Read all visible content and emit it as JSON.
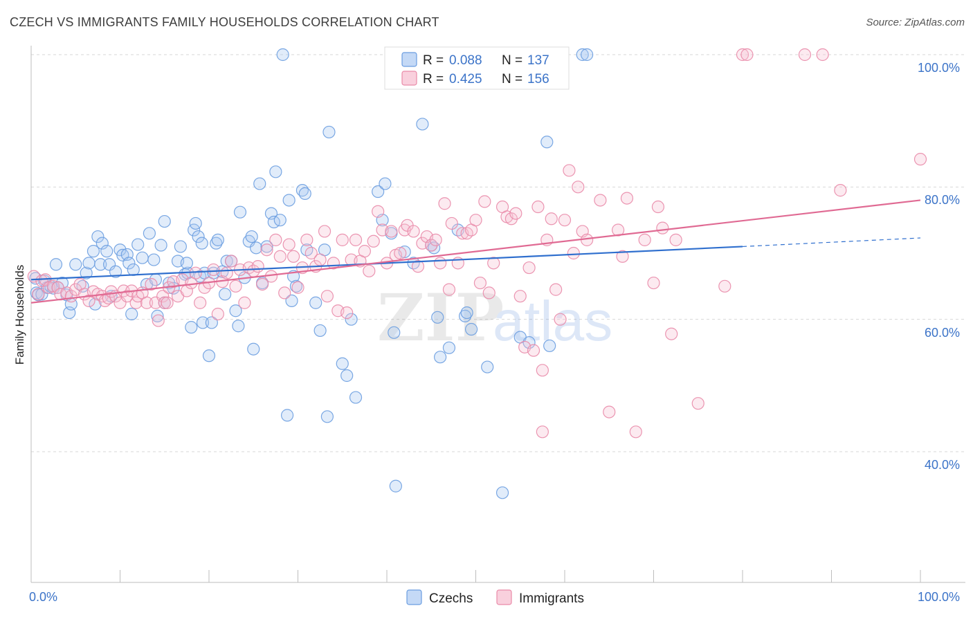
{
  "title": "CZECH VS IMMIGRANTS FAMILY HOUSEHOLDS CORRELATION CHART",
  "source": "Source: ZipAtlas.com",
  "watermark": {
    "zip": "ZIP",
    "atlas": "atlas"
  },
  "legend": {
    "r_label": "R =",
    "n_label": "N =",
    "series": [
      {
        "name": "Czechs",
        "r": "0.088",
        "n": "137",
        "color": "#8fb8ee",
        "stroke": "#6a9de0"
      },
      {
        "name": "Immigrants",
        "r": "0.425",
        "n": "156",
        "color": "#f4b6c9",
        "stroke": "#e98aa8"
      }
    ]
  },
  "chart_data": {
    "type": "scatter",
    "title": "CZECH VS IMMIGRANTS FAMILY HOUSEHOLDS CORRELATION CHART",
    "xlabel": "",
    "ylabel": "Family Households",
    "xlim": [
      0,
      100
    ],
    "ylim": [
      22,
      102
    ],
    "x_tick_labels": [
      "0.0%",
      "100.0%"
    ],
    "y_ticks": [
      40,
      60,
      80,
      100
    ],
    "y_tick_labels": [
      "40.0%",
      "60.0%",
      "80.0%",
      "100.0%"
    ],
    "grid": true,
    "series": [
      {
        "name": "Czechs",
        "color": "#8fb8ee",
        "trend": {
          "x0": 0,
          "y0": 66.0,
          "x1": 80,
          "y1": 71.0,
          "x_dash_end": 100,
          "y_dash_end": 72.3,
          "color": "#2f6fce"
        },
        "points": [
          [
            0.5,
            66.2
          ],
          [
            0.6,
            64
          ],
          [
            0.8,
            63.7
          ],
          [
            1.2,
            63.8
          ],
          [
            1.5,
            65.8
          ],
          [
            1.8,
            64.8
          ],
          [
            2.2,
            65
          ],
          [
            2.5,
            64.7
          ],
          [
            2.8,
            68.3
          ],
          [
            3,
            64.8
          ],
          [
            3.5,
            65.5
          ],
          [
            4,
            63.7
          ],
          [
            4.3,
            61
          ],
          [
            4.5,
            62.3
          ],
          [
            5,
            68.3
          ],
          [
            5.8,
            65
          ],
          [
            6.2,
            67
          ],
          [
            6.5,
            68.5
          ],
          [
            7,
            70.3
          ],
          [
            7.2,
            62.3
          ],
          [
            7.5,
            72.5
          ],
          [
            7.8,
            68.3
          ],
          [
            8,
            71.5
          ],
          [
            8.5,
            70.3
          ],
          [
            8.8,
            68.3
          ],
          [
            9,
            63.5
          ],
          [
            9.5,
            67.2
          ],
          [
            10,
            70.5
          ],
          [
            10.3,
            69.7
          ],
          [
            10.8,
            69.8
          ],
          [
            11,
            68.5
          ],
          [
            11.3,
            60.8
          ],
          [
            11.5,
            67.5
          ],
          [
            12,
            71.3
          ],
          [
            12.5,
            69.3
          ],
          [
            13,
            65.3
          ],
          [
            13.3,
            73
          ],
          [
            13.8,
            69
          ],
          [
            14,
            66
          ],
          [
            14.2,
            60.5
          ],
          [
            14.6,
            71.2
          ],
          [
            15,
            62.5
          ],
          [
            15,
            74.8
          ],
          [
            15.5,
            65.5
          ],
          [
            16,
            64.7
          ],
          [
            16.5,
            68.8
          ],
          [
            16.8,
            71
          ],
          [
            17.3,
            66.8
          ],
          [
            17.6,
            67
          ],
          [
            17.5,
            68.5
          ],
          [
            18,
            58.8
          ],
          [
            18.3,
            73.5
          ],
          [
            18.5,
            74.5
          ],
          [
            18.8,
            72.5
          ],
          [
            19,
            66.5
          ],
          [
            19.3,
            59.5
          ],
          [
            19.2,
            71.5
          ],
          [
            19.5,
            67
          ],
          [
            20,
            54.5
          ],
          [
            20.5,
            67
          ],
          [
            20.3,
            59.5
          ],
          [
            20.8,
            71.5
          ],
          [
            21,
            72
          ],
          [
            21.5,
            67.2
          ],
          [
            21.8,
            63.8
          ],
          [
            22,
            68.8
          ],
          [
            22.5,
            68.8
          ],
          [
            23,
            61.3
          ],
          [
            23.3,
            59
          ],
          [
            23.5,
            76.2
          ],
          [
            24,
            66.3
          ],
          [
            24.5,
            71.8
          ],
          [
            24.8,
            72.5
          ],
          [
            25,
            55.5
          ],
          [
            25.3,
            70.8
          ],
          [
            25.7,
            80.5
          ],
          [
            26,
            65.5
          ],
          [
            26.5,
            71
          ],
          [
            27,
            76
          ],
          [
            27.5,
            82.3
          ],
          [
            27.3,
            74.7
          ],
          [
            28,
            75
          ],
          [
            28.3,
            100
          ],
          [
            28.8,
            45.5
          ],
          [
            29,
            78
          ],
          [
            29.3,
            62.8
          ],
          [
            29.5,
            66.5
          ],
          [
            29.8,
            65
          ],
          [
            30.5,
            79.5
          ],
          [
            30.8,
            79
          ],
          [
            31,
            70.5
          ],
          [
            32,
            62.5
          ],
          [
            32.5,
            58.3
          ],
          [
            33,
            70.5
          ],
          [
            33.3,
            45.3
          ],
          [
            33.5,
            88.3
          ],
          [
            35,
            53.3
          ],
          [
            35.5,
            51.5
          ],
          [
            36,
            60
          ],
          [
            36.5,
            48.2
          ],
          [
            39,
            79.3
          ],
          [
            39.5,
            75
          ],
          [
            39.8,
            80.5
          ],
          [
            40.5,
            73
          ],
          [
            41,
            34.8
          ],
          [
            40.8,
            58
          ],
          [
            42,
            70.2
          ],
          [
            43,
            68.5
          ],
          [
            44,
            89.5
          ],
          [
            45,
            71.2
          ],
          [
            45.3,
            70.8
          ],
          [
            45.7,
            60.3
          ],
          [
            46,
            54.3
          ],
          [
            47,
            55.7
          ],
          [
            48,
            73.5
          ],
          [
            48.8,
            60.5
          ],
          [
            49,
            61
          ],
          [
            49.5,
            58.5
          ],
          [
            51.3,
            52.8
          ],
          [
            53,
            33.8
          ],
          [
            55,
            57.3
          ],
          [
            56,
            56.5
          ],
          [
            58,
            86.8
          ],
          [
            58.3,
            56
          ],
          [
            62,
            100
          ],
          [
            62.5,
            100
          ]
        ]
      },
      {
        "name": "Immigrants",
        "color": "#f4b6c9",
        "trend": {
          "x0": 0,
          "y0": 62.5,
          "x1": 100,
          "y1": 78.0,
          "color": "#e06a93"
        },
        "points": [
          [
            0.3,
            66.5
          ],
          [
            0.8,
            63.8
          ],
          [
            1.2,
            65.8
          ],
          [
            1.6,
            66
          ],
          [
            2,
            64.8
          ],
          [
            2.5,
            65
          ],
          [
            3,
            64.8
          ],
          [
            3.3,
            63.8
          ],
          [
            4,
            64
          ],
          [
            4.5,
            63.5
          ],
          [
            5,
            64.5
          ],
          [
            5.5,
            65.3
          ],
          [
            6,
            63.8
          ],
          [
            6.5,
            62.8
          ],
          [
            7,
            64.2
          ],
          [
            7.5,
            63.8
          ],
          [
            8,
            63.5
          ],
          [
            8.3,
            62.8
          ],
          [
            8.7,
            63.2
          ],
          [
            9,
            64.2
          ],
          [
            9.5,
            63.5
          ],
          [
            10,
            62.5
          ],
          [
            10.4,
            64.3
          ],
          [
            10.8,
            63.5
          ],
          [
            11.3,
            64.3
          ],
          [
            11.8,
            62.5
          ],
          [
            12,
            63.5
          ],
          [
            12.5,
            64
          ],
          [
            13,
            62.5
          ],
          [
            13.5,
            65.3
          ],
          [
            14,
            62.5
          ],
          [
            14.3,
            59.8
          ],
          [
            14.8,
            63.5
          ],
          [
            15,
            62.5
          ],
          [
            15.3,
            62.5
          ],
          [
            15.5,
            64.8
          ],
          [
            16,
            65.7
          ],
          [
            16.5,
            63.5
          ],
          [
            17,
            66
          ],
          [
            17.5,
            64.3
          ],
          [
            18,
            65.5
          ],
          [
            18.5,
            67
          ],
          [
            19,
            62.5
          ],
          [
            19.5,
            64.8
          ],
          [
            20,
            65.5
          ],
          [
            20.5,
            67.5
          ],
          [
            21,
            60.8
          ],
          [
            21.5,
            65.7
          ],
          [
            22,
            67
          ],
          [
            22.5,
            68.8
          ],
          [
            23,
            65
          ],
          [
            23.5,
            67.5
          ],
          [
            24,
            62.5
          ],
          [
            24.5,
            67.8
          ],
          [
            25,
            67.3
          ],
          [
            25.5,
            68
          ],
          [
            26,
            65.3
          ],
          [
            26.5,
            70.5
          ],
          [
            27,
            66.5
          ],
          [
            27.5,
            72
          ],
          [
            28,
            69.5
          ],
          [
            28.5,
            64
          ],
          [
            29,
            71.3
          ],
          [
            29.5,
            69.5
          ],
          [
            30,
            64.8
          ],
          [
            30.5,
            67.8
          ],
          [
            31,
            72
          ],
          [
            31.5,
            70
          ],
          [
            32,
            68
          ],
          [
            32.5,
            69
          ],
          [
            33,
            73.3
          ],
          [
            33.3,
            63.5
          ],
          [
            34,
            68.5
          ],
          [
            34.5,
            61.3
          ],
          [
            35,
            72
          ],
          [
            35.5,
            61
          ],
          [
            36,
            69
          ],
          [
            36.5,
            72
          ],
          [
            37,
            68.8
          ],
          [
            37.5,
            70.3
          ],
          [
            38,
            67.3
          ],
          [
            38.5,
            71.8
          ],
          [
            39,
            76.3
          ],
          [
            39.5,
            73.5
          ],
          [
            40,
            68.5
          ],
          [
            40.5,
            73.3
          ],
          [
            41,
            69.7
          ],
          [
            41.5,
            70
          ],
          [
            42,
            73.5
          ],
          [
            42.3,
            74.2
          ],
          [
            43,
            73.3
          ],
          [
            43.5,
            68
          ],
          [
            44,
            71.5
          ],
          [
            44.5,
            72.5
          ],
          [
            45,
            71.2
          ],
          [
            45.5,
            72
          ],
          [
            46,
            68.5
          ],
          [
            46.5,
            77.5
          ],
          [
            47,
            64.5
          ],
          [
            47.3,
            74.5
          ],
          [
            48,
            68.5
          ],
          [
            48.5,
            73
          ],
          [
            49,
            73
          ],
          [
            49.5,
            73.5
          ],
          [
            50,
            75
          ],
          [
            50.5,
            65.5
          ],
          [
            51,
            77.8
          ],
          [
            51.5,
            64
          ],
          [
            52,
            68.5
          ],
          [
            53,
            77
          ],
          [
            53.5,
            75.5
          ],
          [
            54,
            75.2
          ],
          [
            54.5,
            76
          ],
          [
            55,
            63.5
          ],
          [
            55.5,
            55.8
          ],
          [
            56,
            67.8
          ],
          [
            56.5,
            55.3
          ],
          [
            57,
            77
          ],
          [
            57.5,
            52.3
          ],
          [
            57.5,
            43
          ],
          [
            58,
            72
          ],
          [
            58.5,
            75.2
          ],
          [
            59,
            64.5
          ],
          [
            59.5,
            60
          ],
          [
            60,
            75
          ],
          [
            60.5,
            82.5
          ],
          [
            61,
            70
          ],
          [
            61.5,
            80
          ],
          [
            62,
            73.3
          ],
          [
            62.5,
            72
          ],
          [
            64,
            78
          ],
          [
            65,
            46
          ],
          [
            66,
            73.5
          ],
          [
            66.5,
            69.5
          ],
          [
            67,
            78.3
          ],
          [
            68,
            43
          ],
          [
            69,
            72
          ],
          [
            70,
            65.5
          ],
          [
            70.5,
            77
          ],
          [
            71,
            73.8
          ],
          [
            72,
            57.8
          ],
          [
            72.5,
            72
          ],
          [
            75,
            47.3
          ],
          [
            78,
            65
          ],
          [
            80,
            100
          ],
          [
            80.5,
            100
          ],
          [
            87,
            100
          ],
          [
            89,
            100
          ],
          [
            91,
            79.5
          ],
          [
            100,
            84.2
          ]
        ]
      }
    ]
  }
}
